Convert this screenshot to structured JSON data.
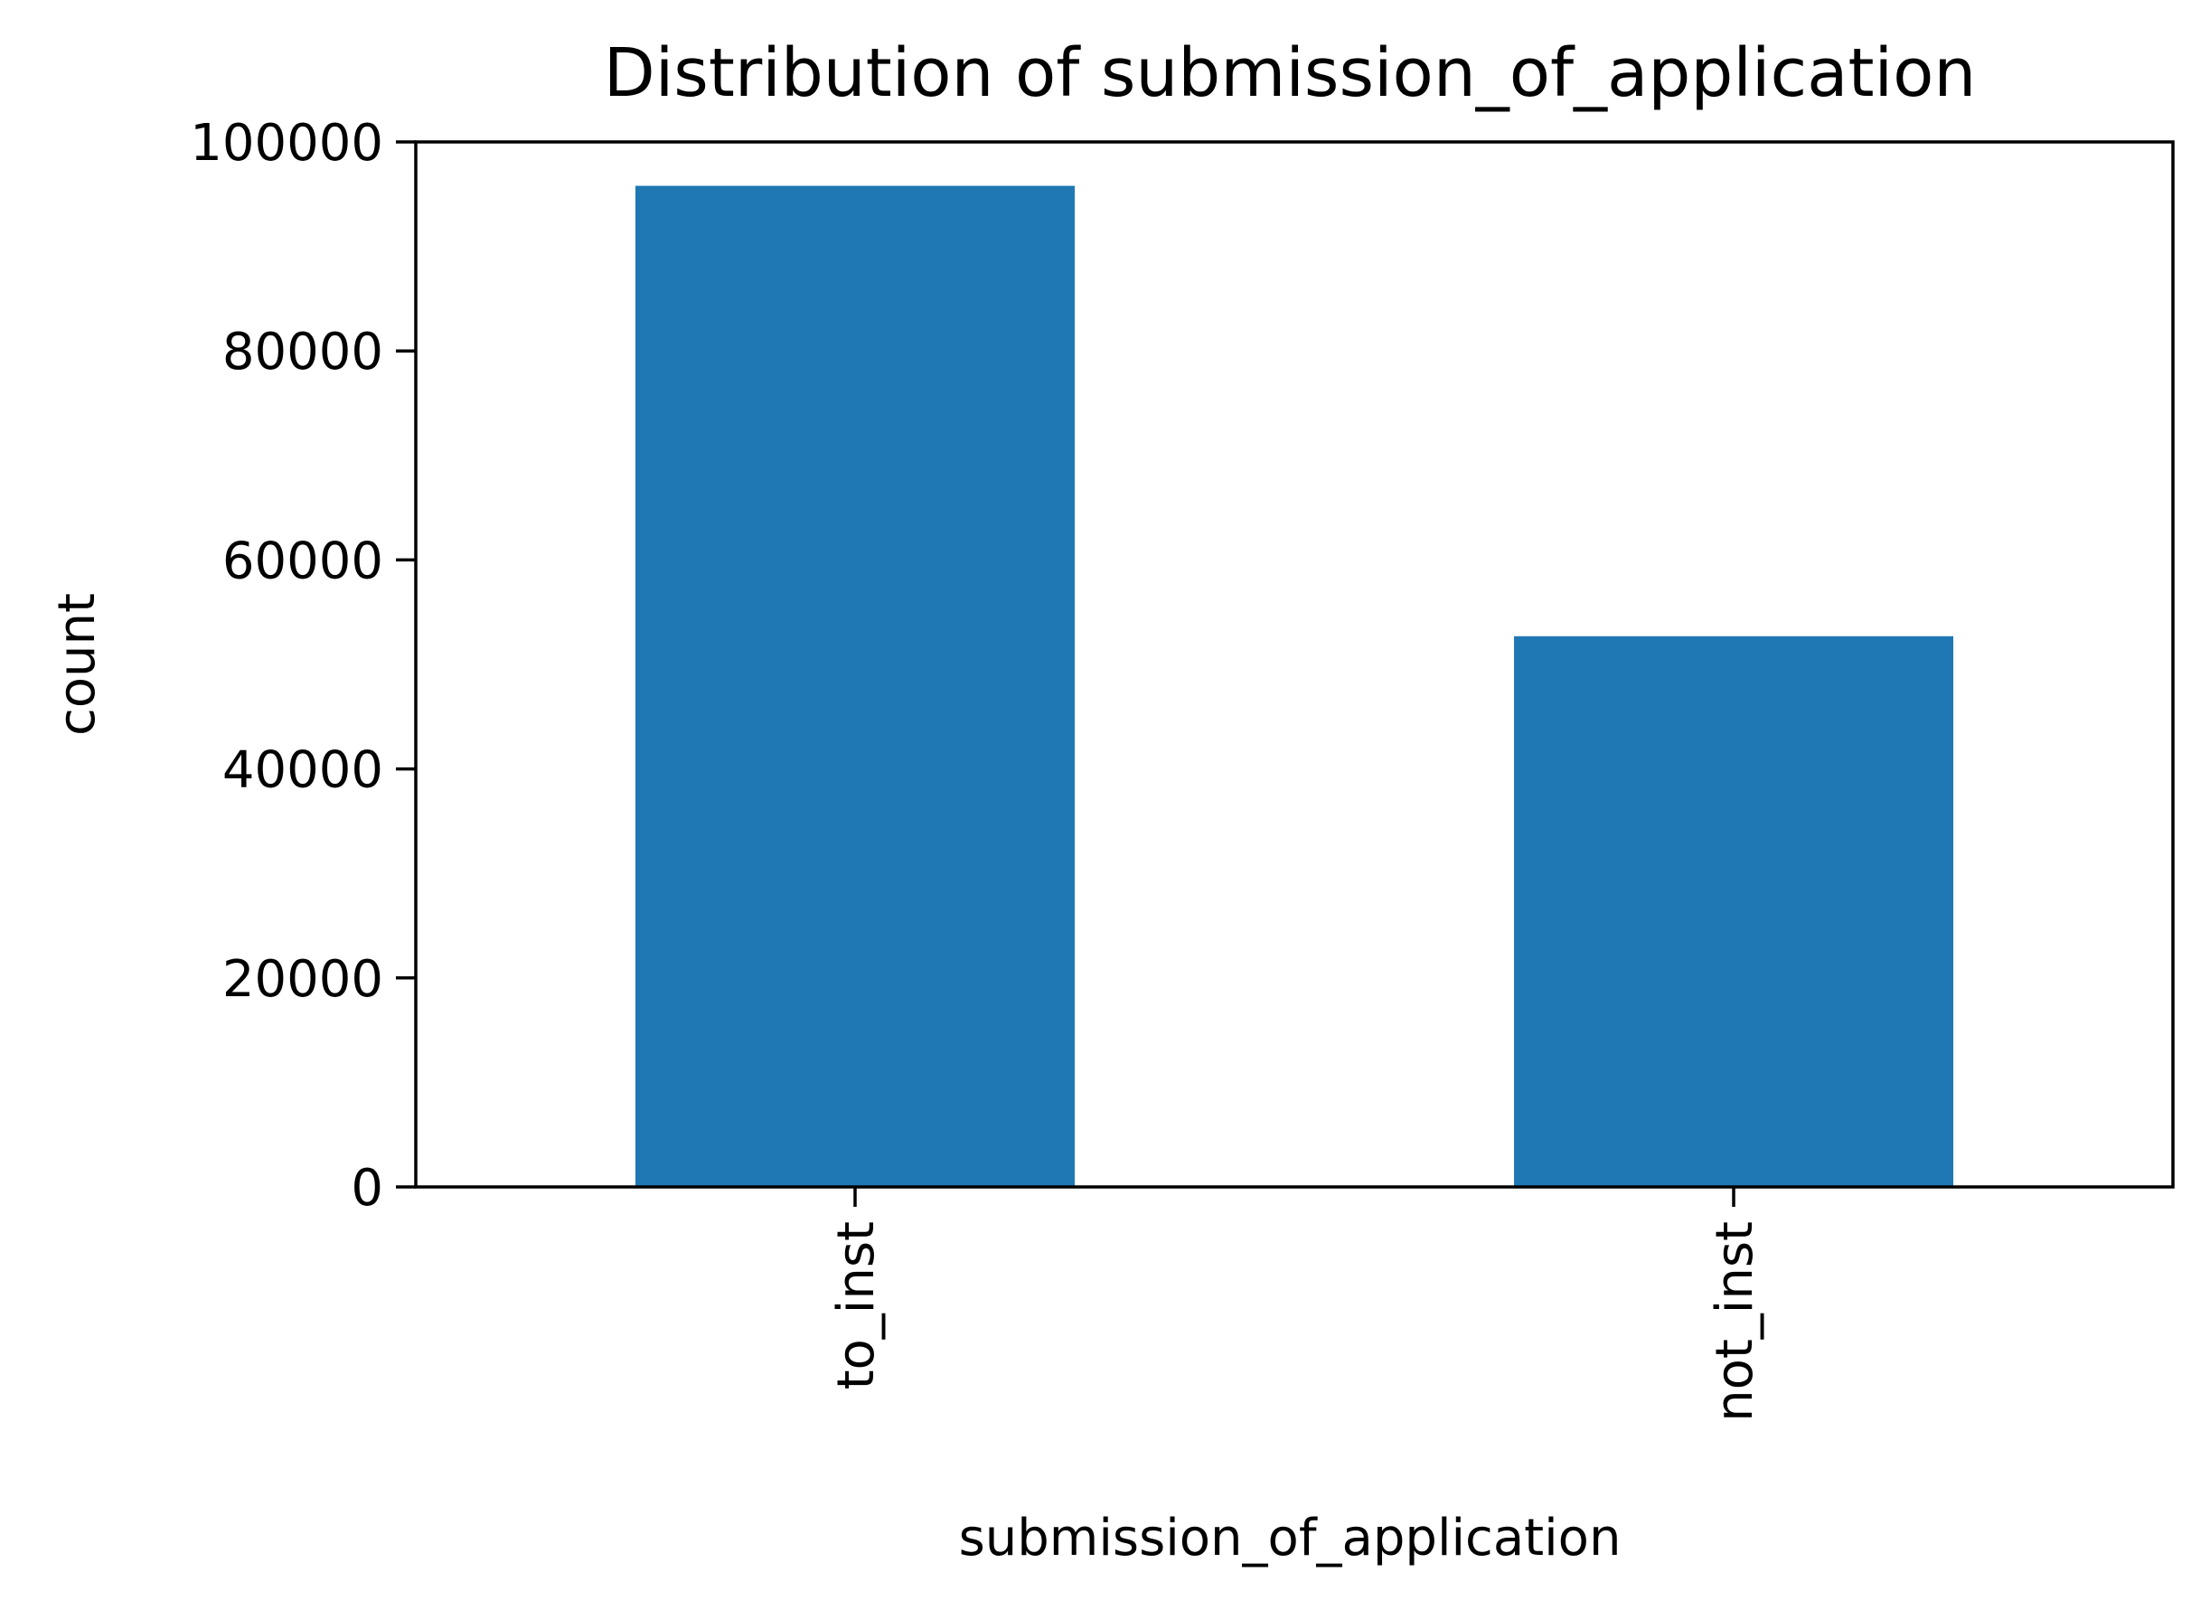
{
  "chart_data": {
    "type": "bar",
    "title": "Distribution of submission_of_application",
    "xlabel": "submission_of_application",
    "ylabel": "count",
    "categories": [
      "to_inst",
      "not_inst"
    ],
    "values": [
      95800,
      52700
    ],
    "ylim": [
      0,
      100000
    ],
    "yticks": [
      0,
      20000,
      40000,
      60000,
      80000,
      100000
    ],
    "ytick_labels": [
      "0",
      "20000",
      "40000",
      "60000",
      "80000",
      "100000"
    ],
    "grid": false,
    "legend": "none",
    "bar_color": "#1f77b4"
  }
}
